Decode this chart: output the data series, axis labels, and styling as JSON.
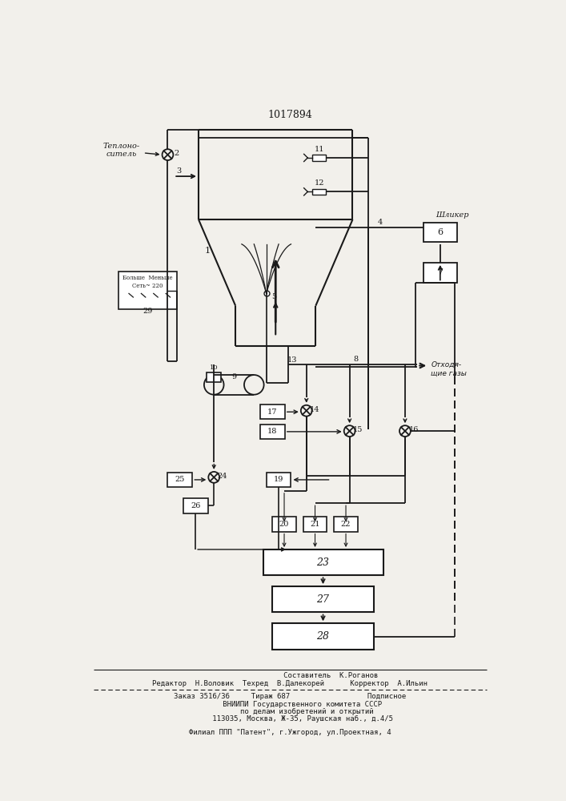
{
  "title": "1017894",
  "bg_color": "#f2f0eb",
  "line_color": "#1a1a1a",
  "text_color": "#1a1a1a",
  "footer_lines": [
    "                   Составитель  К.Роганов",
    "Редактор  Н.Воловик  Техред  В.Далекорей      Корректор  А.Ильин",
    "Заказ 3516/36     Тираж 687                  Подписное",
    "      ВНИИПИ Государственного комитета СССР",
    "        по делам изобретений и открытий",
    "      113035, Москва, Ж-35, Раушская наб., д.4/5",
    "Филиал ППП \"Патент\", г.Ужгород, ул.Проектная, 4"
  ]
}
